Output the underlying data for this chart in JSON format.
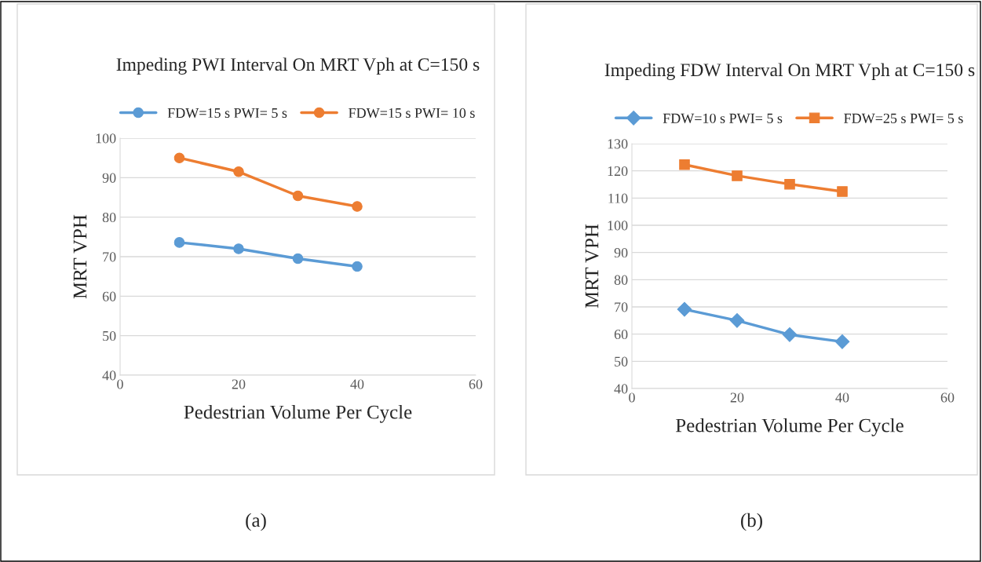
{
  "chart_data": [
    {
      "type": "line",
      "title": "Impeding PWI Interval On MRT Vph at C=150 s",
      "xlabel": "Pedestrian Volume Per Cycle",
      "ylabel": "MRT VPH",
      "x": [
        10,
        20,
        30,
        40
      ],
      "series": [
        {
          "name": "FDW=15 s PWI= 5 s",
          "color": "#5b9bd5",
          "marker": "circle",
          "values": [
            73.6,
            72.0,
            69.5,
            67.5
          ]
        },
        {
          "name": "FDW=15 s PWI= 10 s",
          "color": "#ed7d31",
          "marker": "circle",
          "values": [
            95.0,
            91.5,
            85.4,
            82.7
          ]
        }
      ],
      "xlim": [
        0,
        60
      ],
      "xticks": [
        0,
        20,
        40,
        60
      ],
      "ylim": [
        40,
        100
      ],
      "yticks": [
        40,
        50,
        60,
        70,
        80,
        90,
        100
      ],
      "grid": "y",
      "legend": "top",
      "annotations": [
        "(a)"
      ]
    },
    {
      "type": "line",
      "title": "Impeding FDW Interval On MRT Vph at C=150 s",
      "xlabel": "Pedestrian Volume Per Cycle",
      "ylabel": "MRT VPH",
      "x": [
        10,
        20,
        30,
        40
      ],
      "series": [
        {
          "name": "FDW=10 s PWI= 5 s",
          "color": "#5b9bd5",
          "marker": "diamond",
          "values": [
            69.1,
            65.0,
            59.8,
            57.2
          ]
        },
        {
          "name": "FDW=25 s PWI= 5 s",
          "color": "#ed7d31",
          "marker": "square",
          "values": [
            122.3,
            118.2,
            115.1,
            112.4
          ]
        }
      ],
      "xlim": [
        0,
        60
      ],
      "xticks": [
        0,
        20,
        40,
        60
      ],
      "ylim": [
        40,
        130
      ],
      "yticks": [
        40,
        50,
        60,
        70,
        80,
        90,
        100,
        110,
        120,
        130
      ],
      "grid": "y",
      "legend": "top",
      "annotations": [
        "(b)"
      ]
    }
  ]
}
